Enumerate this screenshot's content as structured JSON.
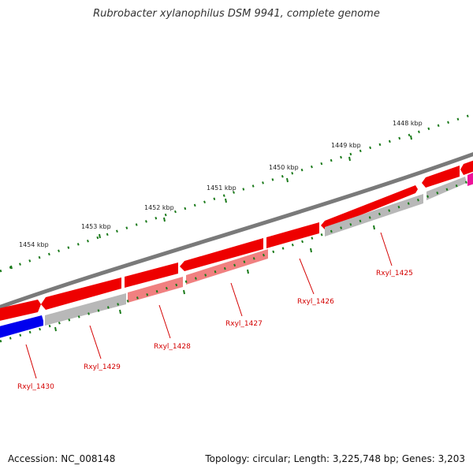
{
  "title": "Rubrobacter xylanophilus DSM 9941, complete genome",
  "footer": {
    "accession": "Accession: NC_008148",
    "summary": "Topology: circular; Length: 3,225,748 bp; Genes: 3,203"
  },
  "scale": {
    "labels": [
      "1448 kbp",
      "1449 kbp",
      "1450 kbp",
      "1451 kbp",
      "1452 kbp",
      "1453 kbp",
      "1454 kbp"
    ]
  },
  "genes": {
    "labels": [
      "Rxyl_1425",
      "Rxyl_1426",
      "Rxyl_1427",
      "Rxyl_1428",
      "Rxyl_1429",
      "Rxyl_1430"
    ]
  },
  "colors": {
    "backbone": "#7a7a7a",
    "cds": "#ee0000",
    "cds_light": "#f08080",
    "gene_gray": "#b8b8b8",
    "blue": "#0000ee",
    "magenta": "#ee1199",
    "tick": "#1a7a1a",
    "label": "#d40000"
  }
}
